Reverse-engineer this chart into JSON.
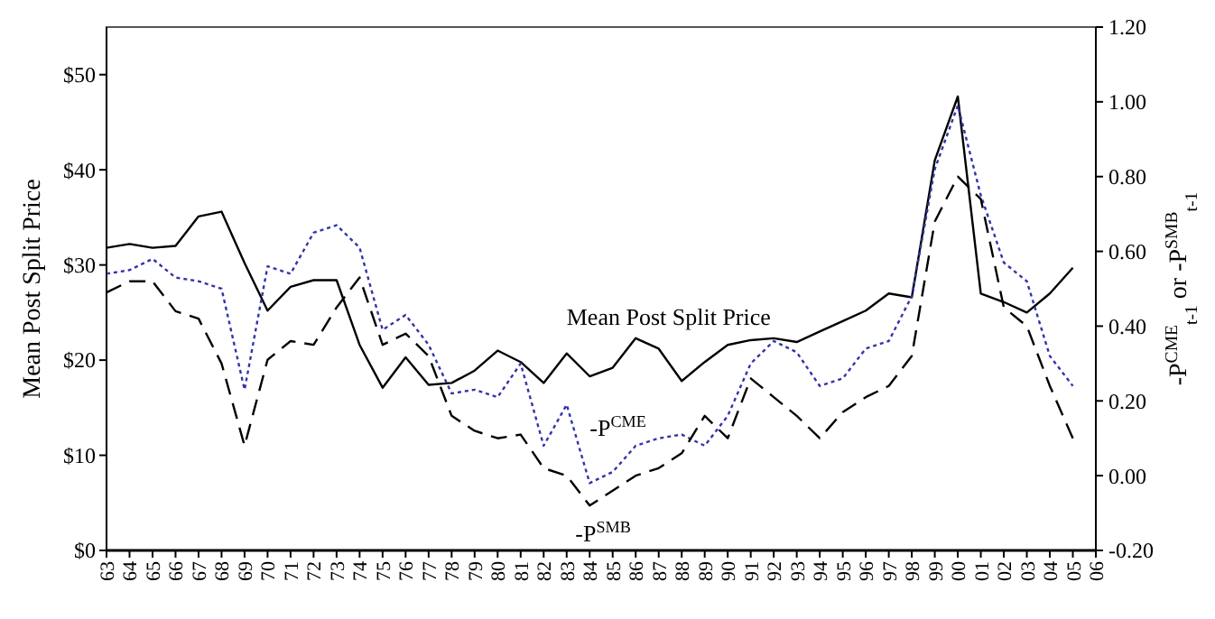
{
  "chart_data": {
    "type": "line",
    "ylabel": "Mean Post Split Price",
    "y2label": "-P$^{CME}$$_{t-1}$ or -P$^{SMB}$$_{t-1}$",
    "categories": [
      "63",
      "64",
      "65",
      "66",
      "67",
      "68",
      "69",
      "70",
      "71",
      "72",
      "73",
      "74",
      "75",
      "76",
      "77",
      "78",
      "79",
      "80",
      "81",
      "82",
      "83",
      "84",
      "85",
      "86",
      "87",
      "88",
      "89",
      "90",
      "91",
      "92",
      "93",
      "94",
      "95",
      "96",
      "97",
      "98",
      "99",
      "00",
      "01",
      "02",
      "03",
      "04",
      "05",
      "06"
    ],
    "ylim": [
      0,
      55
    ],
    "yticks": [
      {
        "value": 0,
        "label": "$0"
      },
      {
        "value": 10,
        "label": "$10"
      },
      {
        "value": 20,
        "label": "$20"
      },
      {
        "value": 30,
        "label": "$30"
      },
      {
        "value": 40,
        "label": "$40"
      },
      {
        "value": 50,
        "label": "$50"
      }
    ],
    "y2lim": [
      -0.2,
      1.2
    ],
    "y2ticks": [
      {
        "value": -0.2,
        "label": "-0.20"
      },
      {
        "value": 0,
        "label": "0.00"
      },
      {
        "value": 0.2,
        "label": "0.20"
      },
      {
        "value": 0.4,
        "label": "0.40"
      },
      {
        "value": 0.6,
        "label": "0.60"
      },
      {
        "value": 0.8,
        "label": "0.80"
      },
      {
        "value": 1,
        "label": "1.00"
      },
      {
        "value": 1.2,
        "label": "1.20"
      }
    ],
    "series": [
      {
        "name": "Mean Post Split Price",
        "color": "#000000",
        "line_style": "solid",
        "values": [
          31.8,
          32.2,
          31.8,
          32.0,
          35.1,
          35.6,
          30.2,
          25.2,
          27.7,
          28.4,
          28.4,
          21.6,
          17.1,
          20.3,
          17.4,
          17.6,
          18.9,
          21.0,
          19.8,
          17.6,
          20.7,
          18.3,
          19.2,
          22.3,
          21.2,
          17.8,
          19.8,
          21.6,
          22.1,
          22.3,
          21.9,
          23.0,
          24.1,
          25.2,
          27.0,
          26.6,
          41.0,
          47.7,
          27.0,
          26.1,
          25.0,
          27.0,
          29.7,
          null
        ]
      },
      {
        "name": "-P$^{CME}$",
        "color": "#3333aa",
        "line_style": "dotted",
        "axis": "y2",
        "values": [
          0.54,
          0.55,
          0.58,
          0.53,
          0.52,
          0.5,
          0.23,
          0.56,
          0.54,
          0.65,
          0.67,
          0.61,
          0.39,
          0.43,
          0.35,
          0.22,
          0.23,
          0.21,
          0.3,
          0.08,
          0.19,
          -0.02,
          0.01,
          0.08,
          0.1,
          0.11,
          0.08,
          0.16,
          0.3,
          0.36,
          0.33,
          0.24,
          0.26,
          0.34,
          0.36,
          0.48,
          0.82,
          0.99,
          0.75,
          0.57,
          0.52,
          0.32,
          0.24,
          null
        ]
      },
      {
        "name": "-P$^{SMB}$",
        "color": "#000000",
        "line_style": "dashed",
        "axis": "y2",
        "values": [
          0.49,
          0.52,
          0.52,
          0.44,
          0.42,
          0.3,
          0.08,
          0.31,
          0.36,
          0.35,
          0.45,
          0.53,
          0.35,
          0.38,
          0.32,
          0.16,
          0.12,
          0.1,
          0.11,
          0.02,
          0.0,
          -0.08,
          -0.04,
          0.0,
          0.02,
          0.06,
          0.16,
          0.1,
          0.26,
          0.21,
          0.16,
          0.1,
          0.17,
          0.21,
          0.24,
          0.32,
          0.68,
          0.8,
          0.74,
          0.45,
          0.4,
          0.24,
          0.1,
          null
        ]
      }
    ]
  }
}
